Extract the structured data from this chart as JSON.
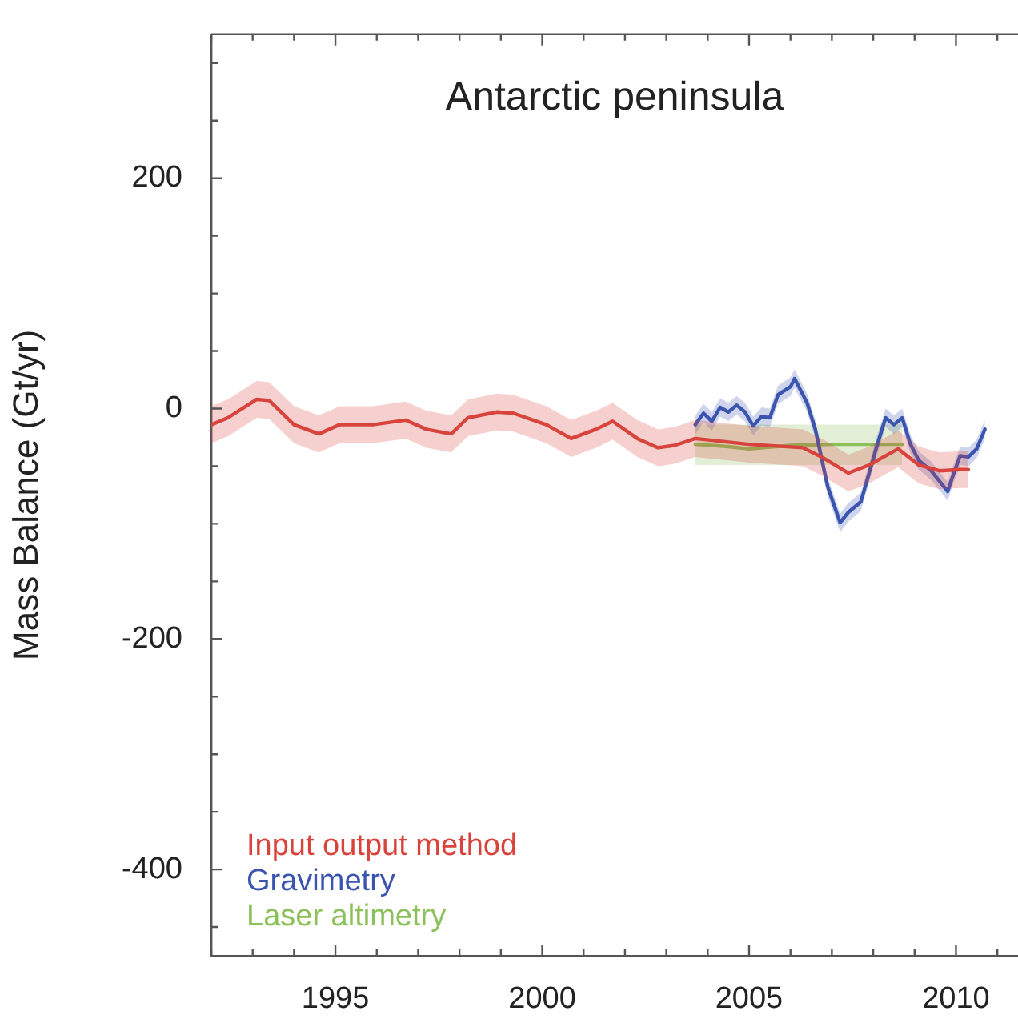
{
  "chart_data": {
    "type": "line",
    "title": "Antarctic peninsula",
    "ylabel": "Mass Balance (Gt/yr)",
    "xlim": [
      1992,
      2011.5
    ],
    "ylim": [
      -475,
      325
    ],
    "xticks": [
      {
        "value": 1992,
        "label": null
      },
      {
        "value": 1993,
        "label": null
      },
      {
        "value": 1994,
        "label": null
      },
      1995,
      {
        "value": 1996,
        "label": null
      },
      {
        "value": 1997,
        "label": null
      },
      {
        "value": 1998,
        "label": null
      },
      {
        "value": 1999,
        "label": null
      },
      2000,
      {
        "value": 2001,
        "label": null
      },
      {
        "value": 2002,
        "label": null
      },
      {
        "value": 2003,
        "label": null
      },
      {
        "value": 2004,
        "label": null
      },
      2005,
      {
        "value": 2006,
        "label": null
      },
      {
        "value": 2007,
        "label": null
      },
      {
        "value": 2008,
        "label": null
      },
      {
        "value": 2009,
        "label": null
      },
      2010,
      {
        "value": 2011,
        "label": null
      }
    ],
    "yticks": [
      {
        "value": -450,
        "label": null
      },
      -400,
      {
        "value": -350,
        "label": null
      },
      {
        "value": -300,
        "label": null
      },
      {
        "value": -250,
        "label": null
      },
      -200,
      {
        "value": -150,
        "label": null
      },
      {
        "value": -100,
        "label": null
      },
      {
        "value": -50,
        "label": null
      },
      0,
      {
        "value": 50,
        "label": null
      },
      {
        "value": 100,
        "label": null
      },
      {
        "value": 150,
        "label": null
      },
      200,
      {
        "value": 250,
        "label": null
      },
      {
        "value": 300,
        "label": null
      }
    ],
    "legend": "bottom left",
    "marker": "none",
    "line_style": "solid",
    "series": [
      {
        "name": "Input output method",
        "color": "#d9433c",
        "x": [
          1992.0,
          1992.4,
          1993.1,
          1993.4,
          1994.0,
          1994.6,
          1995.1,
          1995.9,
          1996.7,
          1997.2,
          1997.8,
          1998.2,
          1998.9,
          1999.3,
          2000.1,
          2000.7,
          2001.3,
          2001.7,
          2002.3,
          2002.8,
          2003.2,
          2003.7,
          2005.0,
          2006.3,
          2006.8,
          2007.4,
          2007.9,
          2008.6,
          2009.1,
          2009.6,
          2010.1,
          2010.3
        ],
        "values": [
          -14,
          -8,
          8,
          7,
          -14,
          -22,
          -14,
          -14,
          -10,
          -18,
          -22,
          -8,
          -3,
          -4,
          -14,
          -26,
          -18,
          -11,
          -26,
          -34,
          -32,
          -26,
          -31,
          -34,
          -43,
          -56,
          -49,
          -35,
          -49,
          -54,
          -53,
          -53
        ],
        "lower": [
          -30,
          -24,
          -8,
          -9,
          -30,
          -38,
          -30,
          -30,
          -26,
          -34,
          -38,
          -24,
          -19,
          -20,
          -30,
          -42,
          -34,
          -27,
          -42,
          -50,
          -48,
          -42,
          -47,
          -50,
          -59,
          -72,
          -65,
          -51,
          -65,
          -70,
          -69,
          -69
        ],
        "upper": [
          2,
          8,
          24,
          23,
          2,
          -6,
          2,
          2,
          6,
          -2,
          -6,
          8,
          13,
          12,
          2,
          -10,
          -2,
          5,
          -10,
          -18,
          -16,
          -10,
          -15,
          -18,
          -27,
          -40,
          -33,
          -19,
          -33,
          -38,
          -37,
          -37
        ]
      },
      {
        "name": "Gravimetry",
        "color": "#3a55b0",
        "x": [
          2003.7,
          2003.9,
          2004.1,
          2004.3,
          2004.5,
          2004.7,
          2004.9,
          2005.1,
          2005.3,
          2005.5,
          2005.7,
          2006.0,
          2006.1,
          2006.4,
          2006.6,
          2006.9,
          2007.2,
          2007.4,
          2007.7,
          2008.1,
          2008.3,
          2008.5,
          2008.7,
          2008.9,
          2009.1,
          2009.4,
          2009.8,
          2009.9,
          2010.1,
          2010.3,
          2010.5,
          2010.7
        ],
        "values": [
          -14,
          -4,
          -11,
          1,
          -3,
          3,
          -3,
          -15,
          -7,
          -8,
          12,
          19,
          26,
          5,
          -18,
          -68,
          -99,
          -90,
          -81,
          -31,
          -8,
          -14,
          -8,
          -31,
          -45,
          -54,
          -72,
          -61,
          -41,
          -42,
          -35,
          -18
        ],
        "lower": [
          -22,
          -12,
          -19,
          -7,
          -11,
          -5,
          -11,
          -23,
          -15,
          -16,
          4,
          11,
          18,
          -3,
          -26,
          -76,
          -107,
          -98,
          -89,
          -39,
          -16,
          -22,
          -16,
          -39,
          -53,
          -62,
          -80,
          -69,
          -49,
          -50,
          -43,
          -26
        ],
        "upper": [
          -6,
          4,
          -3,
          9,
          5,
          11,
          5,
          -7,
          1,
          0,
          20,
          27,
          34,
          13,
          -10,
          -60,
          -91,
          -82,
          -73,
          -23,
          0,
          -6,
          0,
          -23,
          -37,
          -46,
          -64,
          -53,
          -33,
          -34,
          -27,
          -10
        ]
      },
      {
        "name": "Laser altimetry",
        "color": "#8cc05a",
        "x": [
          2003.7,
          2004.5,
          2005.0,
          2006.0,
          2007.0,
          2008.0,
          2008.7
        ],
        "values": [
          -31,
          -33,
          -35,
          -32,
          -31,
          -31,
          -31
        ],
        "lower": [
          -49,
          -49,
          -49,
          -49,
          -49,
          -49,
          -49
        ],
        "upper": [
          -14,
          -14,
          -14,
          -14,
          -14,
          -14,
          -14
        ]
      }
    ]
  }
}
